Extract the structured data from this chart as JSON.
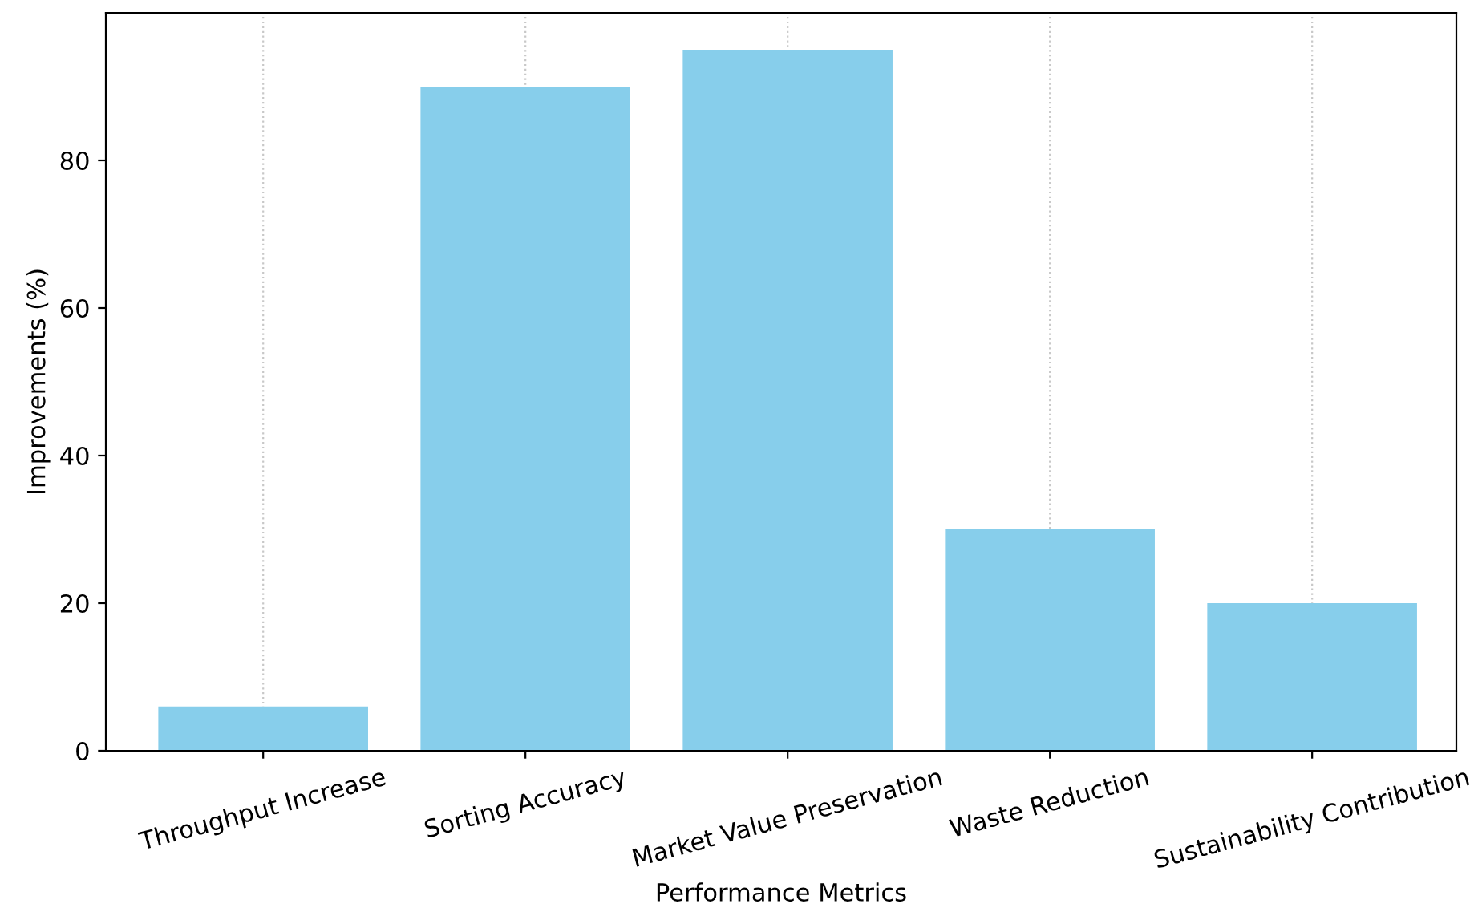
{
  "chart_data": {
    "type": "bar",
    "xlabel": "Performance Metrics",
    "ylabel": "Improvements (%)",
    "categories": [
      "Throughput Increase",
      "Sorting Accuracy",
      "Market Value Preservation",
      "Waste Reduction",
      "Sustainability Contribution"
    ],
    "values": [
      6,
      90,
      95,
      30,
      20
    ],
    "color": "#87ceeb",
    "ylim": [
      0,
      100
    ],
    "yticks": [
      0,
      20,
      40,
      60,
      80
    ],
    "grid": "x"
  }
}
